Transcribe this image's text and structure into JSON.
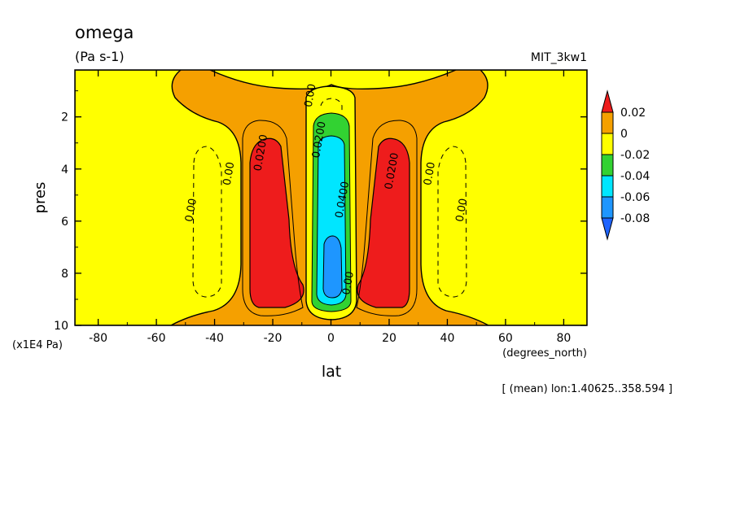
{
  "chart_data": {
    "type": "heatmap",
    "title": "omega",
    "subtitle": "(Pa s-1)",
    "experiment": "MIT_3kw1",
    "xlabel": "lat",
    "xunits": "(degrees_north)",
    "ylabel": "pres",
    "yunits": "(x1E4 Pa)",
    "footnote": "[ (mean) lon:1.40625..358.594 ]",
    "xlim": [
      -88,
      88
    ],
    "ylim": [
      10,
      0.2
    ],
    "xticks": [
      "-80",
      "-60",
      "-40",
      "-20",
      "0",
      "20",
      "40",
      "60",
      "80"
    ],
    "yticks": [
      "2",
      "4",
      "6",
      "8",
      "10"
    ],
    "colorbar": {
      "labels": [
        "0.02",
        "0",
        "-0.02",
        "-0.04",
        "-0.06",
        "-0.08"
      ],
      "bins": [
        {
          "range": ">0.02",
          "color": "#ee1c1c"
        },
        {
          "range": "0 to 0.02",
          "color": "#f5a000"
        },
        {
          "range": "-0.02 to 0",
          "color": "#ffff00"
        },
        {
          "range": "-0.04 to -0.02",
          "color": "#32d232"
        },
        {
          "range": "-0.06 to -0.04",
          "color": "#00e6ff"
        },
        {
          "range": "-0.08 to -0.06",
          "color": "#1e96ff"
        },
        {
          "range": "<-0.08",
          "color": "#1e64ff"
        }
      ]
    },
    "contour_labels": [
      {
        "text": "0.00",
        "lat": -47,
        "pres": 5.6
      },
      {
        "text": "0.00",
        "lat": -34,
        "pres": 4.2
      },
      {
        "text": "0.0200",
        "lat": -23,
        "pres": 3.4
      },
      {
        "text": "0.00",
        "lat": -6,
        "pres": 1.2
      },
      {
        "text": "0.0200",
        "lat": -3,
        "pres": 2.9
      },
      {
        "text": "0.0400",
        "lat": 5,
        "pres": 5.2
      },
      {
        "text": "0.00",
        "lat": 7,
        "pres": 8.4
      },
      {
        "text": "0.0200",
        "lat": 22,
        "pres": 4.1
      },
      {
        "text": "0.00",
        "lat": 35,
        "pres": 4.2
      },
      {
        "text": "0.00",
        "lat": 46,
        "pres": 5.6
      }
    ]
  }
}
